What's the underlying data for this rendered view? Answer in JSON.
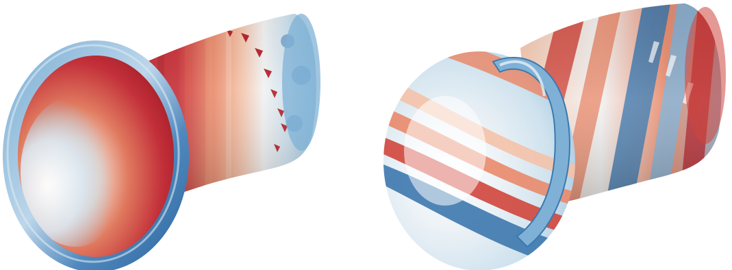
{
  "figure": {
    "panels": [
      {
        "key": "left",
        "pattern": "axial-bands",
        "colors": {
          "red_dark": "#b4232c",
          "red": "#d0463c",
          "orange": "#e98a6b",
          "peach": "#f4c2a8",
          "white": "#f7f7f7",
          "blue_light": "#cfe2ee",
          "blue": "#7fb1d6",
          "blue_dark": "#3d78ae"
        }
      },
      {
        "key": "right",
        "pattern": "helical-bands",
        "colors": {
          "red_dark": "#b4232c",
          "red": "#d0463c",
          "orange": "#e98a6b",
          "peach": "#f4c2a8",
          "white": "#f7f7f7",
          "blue_light": "#cfe2ee",
          "blue": "#7fb1d6",
          "blue_dark": "#3d78ae"
        }
      }
    ]
  }
}
